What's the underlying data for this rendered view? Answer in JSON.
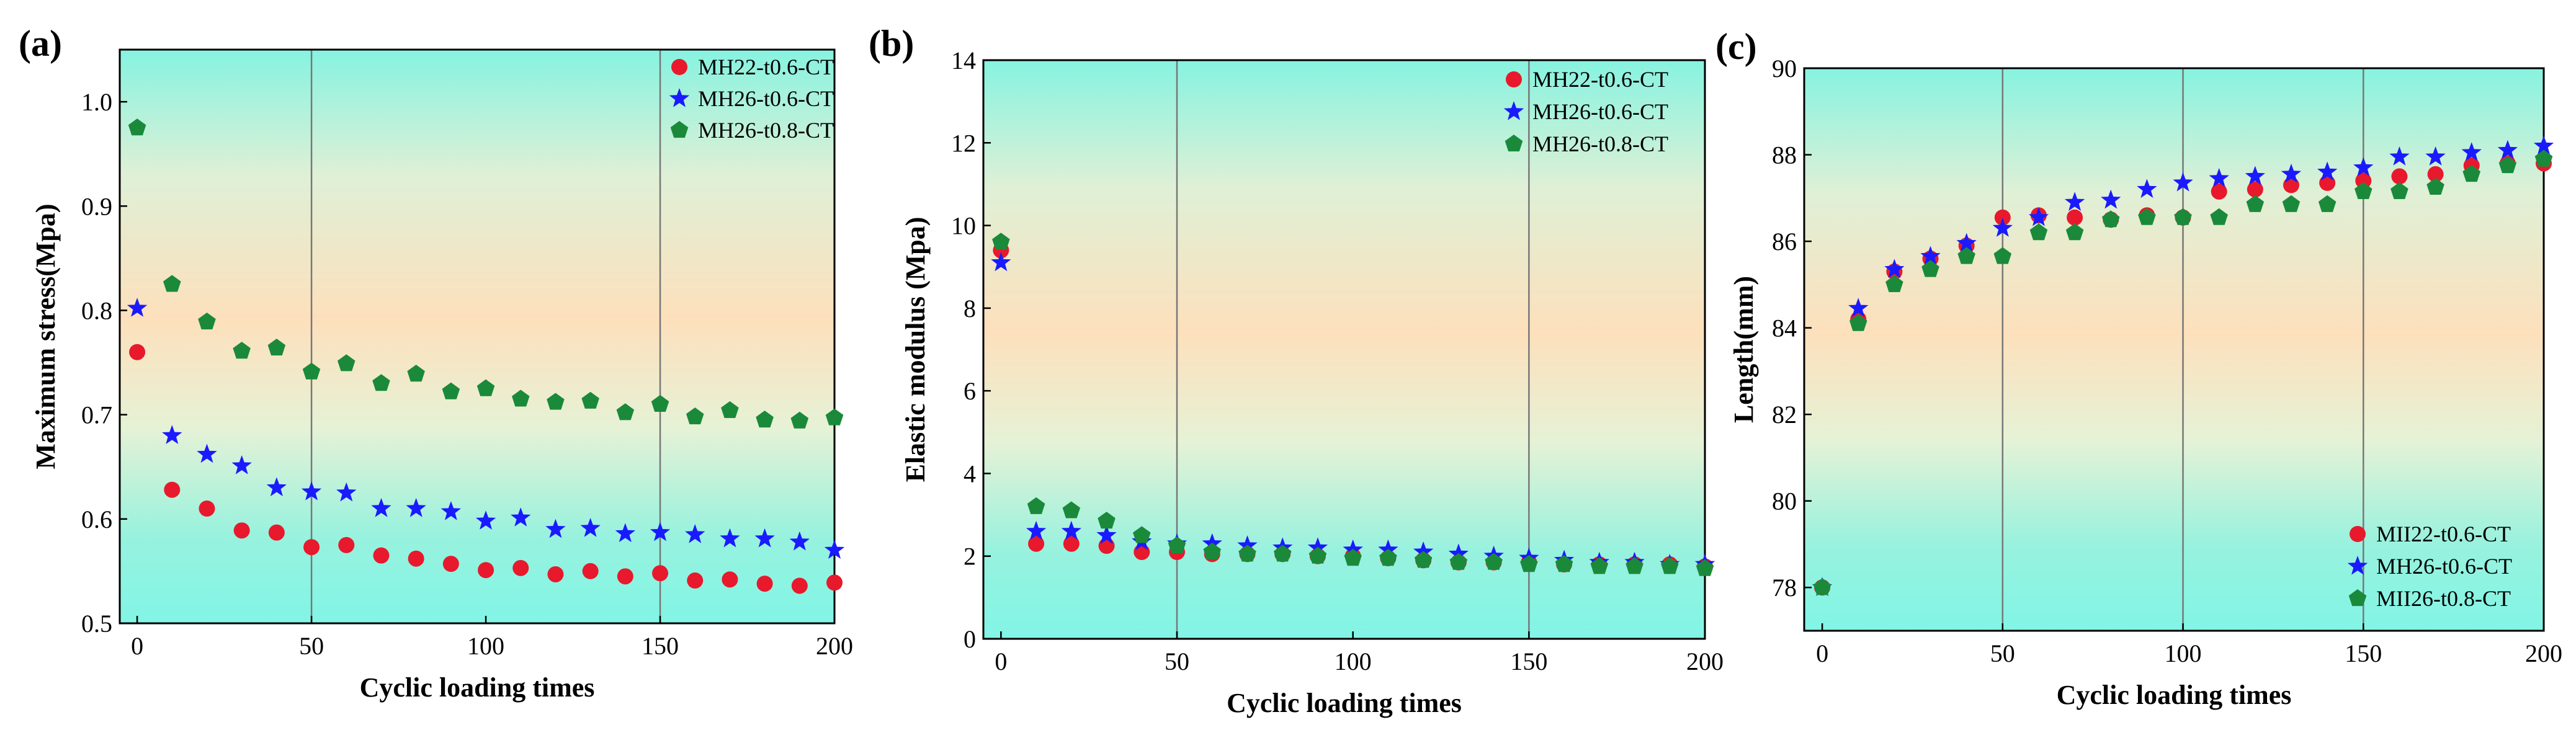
{
  "chart_data": [
    {
      "type": "scatter",
      "panel_label": "(a)",
      "xlabel": "Cyclic loading times",
      "ylabel": "Maximum stress(Mpa)",
      "xlim": [
        -5,
        200
      ],
      "ylim": [
        0.5,
        1.05
      ],
      "xticks": [
        0,
        50,
        100,
        150,
        200
      ],
      "yticks": [
        0.5,
        0.6,
        0.7,
        0.8,
        0.9,
        1.0
      ],
      "ytick_labels": [
        "0.5",
        "0.6",
        "0.7",
        "0.8",
        "0.9",
        "1.0"
      ],
      "vlines": [
        50,
        150
      ],
      "background": "gradient cyan-peach-cyan",
      "legend_position": "top-right",
      "series": [
        {
          "name": "MH22-t0.6-CT",
          "marker": "circle",
          "color": "#e8192c",
          "x": [
            0,
            10,
            20,
            30,
            40,
            50,
            60,
            70,
            80,
            90,
            100,
            110,
            120,
            130,
            140,
            150,
            160,
            170,
            180,
            190,
            200
          ],
          "y": [
            0.76,
            0.628,
            0.61,
            0.589,
            0.587,
            0.573,
            0.575,
            0.565,
            0.562,
            0.557,
            0.551,
            0.553,
            0.547,
            0.55,
            0.545,
            0.548,
            0.541,
            0.542,
            0.538,
            0.536,
            0.539
          ]
        },
        {
          "name": "MH26-t0.6-CT",
          "marker": "star",
          "color": "#1a1aff",
          "x": [
            0,
            10,
            20,
            30,
            40,
            50,
            60,
            70,
            80,
            90,
            100,
            110,
            120,
            130,
            140,
            150,
            160,
            170,
            180,
            190,
            200
          ],
          "y": [
            0.802,
            0.68,
            0.662,
            0.651,
            0.63,
            0.626,
            0.625,
            0.61,
            0.61,
            0.607,
            0.598,
            0.601,
            0.59,
            0.591,
            0.586,
            0.587,
            0.585,
            0.581,
            0.581,
            0.578,
            0.57
          ]
        },
        {
          "name": "MH26-t0.8-CT",
          "marker": "pentagon",
          "color": "#1a8a3a",
          "x": [
            0,
            10,
            20,
            30,
            40,
            50,
            60,
            70,
            80,
            90,
            100,
            110,
            120,
            130,
            140,
            150,
            160,
            170,
            180,
            190,
            200
          ],
          "y": [
            0.975,
            0.825,
            0.789,
            0.761,
            0.764,
            0.741,
            0.749,
            0.73,
            0.739,
            0.722,
            0.725,
            0.715,
            0.712,
            0.713,
            0.702,
            0.71,
            0.698,
            0.704,
            0.695,
            0.694,
            0.697
          ]
        }
      ]
    },
    {
      "type": "scatter",
      "panel_label": "(b)",
      "xlabel": "Cyclic loading times",
      "ylabel": "Elastic modulus (Mpa)",
      "xlim": [
        -5,
        200
      ],
      "ylim": [
        0,
        14
      ],
      "xticks": [
        0,
        50,
        100,
        150,
        200
      ],
      "yticks": [
        0,
        2,
        4,
        6,
        8,
        10,
        12,
        14
      ],
      "ytick_labels": [
        "0",
        "2",
        "4",
        "6",
        "8",
        "10",
        "12",
        "14"
      ],
      "vlines": [
        50,
        150
      ],
      "background": "gradient cyan-peach-cyan",
      "legend_position": "top-right",
      "series": [
        {
          "name": "MH22-t0.6-CT",
          "marker": "circle",
          "color": "#e8192c",
          "x": [
            0,
            10,
            20,
            30,
            40,
            50,
            60,
            70,
            80,
            90,
            100,
            110,
            120,
            130,
            140,
            150,
            160,
            170,
            180,
            190,
            200
          ],
          "y": [
            9.4,
            2.3,
            2.3,
            2.25,
            2.1,
            2.1,
            2.05,
            2.05,
            2.05,
            2.0,
            2.0,
            1.95,
            1.9,
            1.85,
            1.85,
            1.85,
            1.8,
            1.8,
            1.8,
            1.8,
            1.75
          ]
        },
        {
          "name": "MH26-t0.6-CT",
          "marker": "star",
          "color": "#1a1aff",
          "x": [
            0,
            10,
            20,
            30,
            40,
            50,
            60,
            70,
            80,
            90,
            100,
            110,
            120,
            130,
            140,
            150,
            160,
            170,
            180,
            190,
            200
          ],
          "y": [
            9.1,
            2.6,
            2.6,
            2.5,
            2.35,
            2.3,
            2.3,
            2.25,
            2.2,
            2.2,
            2.15,
            2.15,
            2.1,
            2.05,
            2.0,
            1.95,
            1.9,
            1.85,
            1.85,
            1.8,
            1.8
          ]
        },
        {
          "name": "MH26-t0.8-CT",
          "marker": "pentagon",
          "color": "#1a8a3a",
          "x": [
            0,
            10,
            20,
            30,
            40,
            50,
            60,
            70,
            80,
            90,
            100,
            110,
            120,
            130,
            140,
            150,
            160,
            170,
            180,
            190,
            200
          ],
          "y": [
            9.6,
            3.2,
            3.1,
            2.85,
            2.5,
            2.25,
            2.1,
            2.05,
            2.05,
            2.0,
            1.95,
            1.95,
            1.9,
            1.85,
            1.85,
            1.8,
            1.8,
            1.75,
            1.75,
            1.75,
            1.7
          ]
        }
      ]
    },
    {
      "type": "scatter",
      "panel_label": "(c)",
      "xlabel": "Cyclic loading times",
      "ylabel": "Length(mm)",
      "xlim": [
        -5,
        200
      ],
      "ylim": [
        77,
        90
      ],
      "xticks": [
        0,
        50,
        100,
        150,
        200
      ],
      "yticks": [
        78,
        80,
        82,
        84,
        86,
        88,
        90
      ],
      "ytick_labels": [
        "78",
        "80",
        "82",
        "84",
        "86",
        "88",
        "90"
      ],
      "vlines": [
        50,
        100,
        150
      ],
      "background": "gradient cyan-peach-cyan",
      "legend_position": "bottom-right",
      "series": [
        {
          "name": "MII22-t0.6-CT",
          "marker": "circle",
          "color": "#e8192c",
          "x": [
            0,
            10,
            20,
            30,
            40,
            50,
            60,
            70,
            80,
            90,
            100,
            110,
            120,
            130,
            140,
            150,
            160,
            170,
            180,
            190,
            200
          ],
          "y": [
            78.0,
            84.2,
            85.3,
            85.6,
            85.9,
            86.55,
            86.6,
            86.55,
            86.5,
            86.6,
            86.55,
            87.15,
            87.2,
            87.3,
            87.35,
            87.4,
            87.5,
            87.55,
            87.75,
            87.8,
            87.8
          ]
        },
        {
          "name": "MH26-t0.6-CT",
          "marker": "star",
          "color": "#1a1aff",
          "x": [
            0,
            10,
            20,
            30,
            40,
            50,
            60,
            70,
            80,
            90,
            100,
            110,
            120,
            130,
            140,
            150,
            160,
            170,
            180,
            190,
            200
          ],
          "y": [
            78.0,
            84.45,
            85.35,
            85.65,
            85.95,
            86.3,
            86.55,
            86.9,
            86.95,
            87.2,
            87.35,
            87.45,
            87.5,
            87.55,
            87.6,
            87.7,
            87.95,
            87.95,
            88.05,
            88.1,
            88.2
          ]
        },
        {
          "name": "MII26-t0.8-CT",
          "marker": "pentagon",
          "color": "#1a8a3a",
          "x": [
            0,
            10,
            20,
            30,
            40,
            50,
            60,
            70,
            80,
            90,
            100,
            110,
            120,
            130,
            140,
            150,
            160,
            170,
            180,
            190,
            200
          ],
          "y": [
            78.0,
            84.1,
            85.0,
            85.35,
            85.65,
            85.65,
            86.2,
            86.2,
            86.5,
            86.55,
            86.55,
            86.55,
            86.85,
            86.85,
            86.85,
            87.15,
            87.15,
            87.25,
            87.55,
            87.75,
            87.9
          ]
        }
      ]
    }
  ]
}
